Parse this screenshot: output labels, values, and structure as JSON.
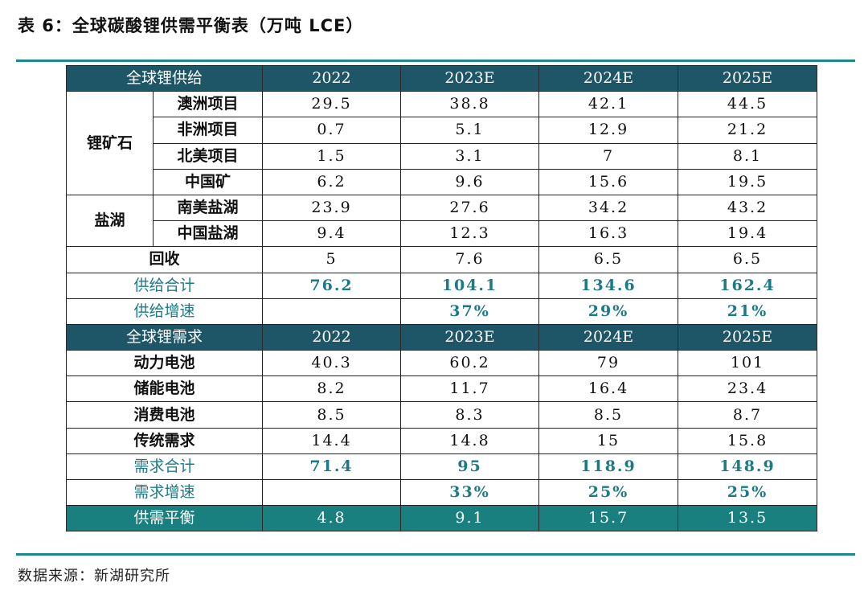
{
  "title": "表 6：全球碳酸锂供需平衡表（万吨 LCE）",
  "source": "数据来源：新湖研究所",
  "supply": {
    "header": "全球锂供给",
    "years": [
      "2022",
      "2023E",
      "2024E",
      "2025E"
    ],
    "ore_group": "锂矿石",
    "ore_rows": [
      {
        "label": "澳洲项目",
        "values": [
          "29.5",
          "38.8",
          "42.1",
          "44.5"
        ]
      },
      {
        "label": "非洲项目",
        "values": [
          "0.7",
          "5.1",
          "12.9",
          "21.2"
        ]
      },
      {
        "label": "北美项目",
        "values": [
          "1.5",
          "3.1",
          "7",
          "8.1"
        ]
      },
      {
        "label": "中国矿",
        "values": [
          "6.2",
          "9.6",
          "15.6",
          "19.5"
        ]
      }
    ],
    "brine_group": "盐湖",
    "brine_rows": [
      {
        "label": "南美盐湖",
        "values": [
          "23.9",
          "27.6",
          "34.2",
          "43.2"
        ]
      },
      {
        "label": "中国盐湖",
        "values": [
          "9.4",
          "12.3",
          "16.3",
          "19.4"
        ]
      }
    ],
    "recycle": {
      "label": "回收",
      "values": [
        "5",
        "7.6",
        "6.5",
        "6.5"
      ]
    },
    "total": {
      "label": "供给合计",
      "values": [
        "76.2",
        "104.1",
        "134.6",
        "162.4"
      ]
    },
    "growth": {
      "label": "供给增速",
      "values": [
        "",
        "37%",
        "29%",
        "21%"
      ]
    }
  },
  "demand": {
    "header": "全球锂需求",
    "years": [
      "2022",
      "2023E",
      "2024E",
      "2025E"
    ],
    "rows": [
      {
        "label": "动力电池",
        "values": [
          "40.3",
          "60.2",
          "79",
          "101"
        ]
      },
      {
        "label": "储能电池",
        "values": [
          "8.2",
          "11.7",
          "16.4",
          "23.4"
        ]
      },
      {
        "label": "消费电池",
        "values": [
          "8.5",
          "8.3",
          "8.5",
          "8.7"
        ]
      },
      {
        "label": "传统需求",
        "values": [
          "14.4",
          "14.8",
          "15",
          "15.8"
        ]
      }
    ],
    "total": {
      "label": "需求合计",
      "values": [
        "71.4",
        "95",
        "118.9",
        "148.9"
      ]
    },
    "growth": {
      "label": "需求增速",
      "values": [
        "",
        "33%",
        "25%",
        "25%"
      ]
    }
  },
  "balance": {
    "label": "供需平衡",
    "values": [
      "4.8",
      "9.1",
      "15.7",
      "13.5"
    ]
  },
  "colors": {
    "header_bg": "#1f5667",
    "accent": "#1c7a86",
    "balance_bg": "#1a7f7f",
    "rule": "#1c8a8a"
  }
}
